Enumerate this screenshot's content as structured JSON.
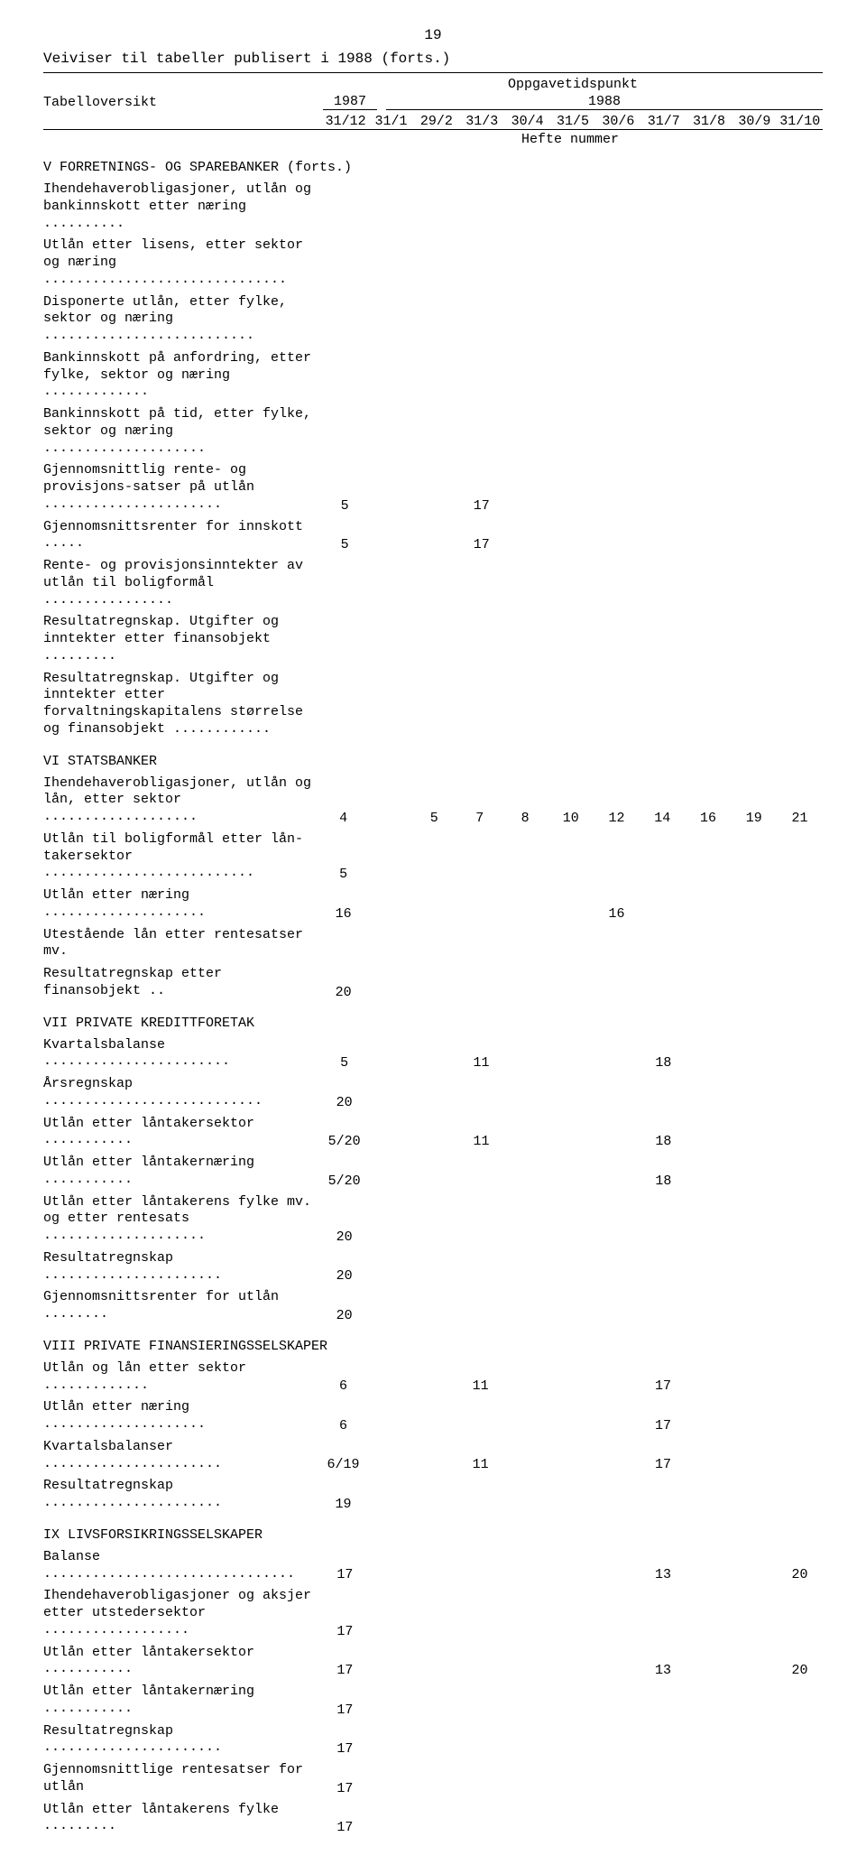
{
  "page_number": "19",
  "doc_title": "Veiviser til tabeller publisert i 1988 (forts.)",
  "header": {
    "left_label": "Tabelloversikt",
    "oppgave": "Oppgavetidspunkt",
    "year_1987": "1987",
    "year_1988": "1988",
    "col_1987": "31/12",
    "cols_1988": [
      "31/1",
      "29/2",
      "31/3",
      "30/4",
      "31/5",
      "30/6",
      "31/7",
      "31/8",
      "30/9",
      "31/10"
    ],
    "hefte": "Hefte nummer"
  },
  "sections": [
    {
      "title": "V  FORRETNINGS- OG SPAREBANKER (forts.)",
      "rows": [
        {
          "label": "Ihendehaverobligasjoner, utlån og bankinnskott etter næring ..........",
          "v": [
            "",
            "",
            "",
            "",
            "",
            "",
            "",
            "",
            "",
            "",
            ""
          ]
        },
        {
          "label": "Utlån etter lisens, etter sektor og næring ..............................",
          "v": [
            "",
            "",
            "",
            "",
            "",
            "",
            "",
            "",
            "",
            "",
            ""
          ]
        },
        {
          "label": "Disponerte utlån, etter fylke, sektor og næring ..........................",
          "v": [
            "",
            "",
            "",
            "",
            "",
            "",
            "",
            "",
            "",
            "",
            ""
          ]
        },
        {
          "label": "Bankinnskott på anfordring, etter fylke, sektor og næring .............",
          "v": [
            "",
            "",
            "",
            "",
            "",
            "",
            "",
            "",
            "",
            "",
            ""
          ]
        },
        {
          "label": "Bankinnskott på tid, etter fylke, sektor og næring ....................",
          "v": [
            "",
            "",
            "",
            "",
            "",
            "",
            "",
            "",
            "",
            "",
            ""
          ]
        },
        {
          "label": "Gjennomsnittlig rente- og provisjons-satser på utlån ......................",
          "v": [
            "5",
            "",
            "",
            "17",
            "",
            "",
            "",
            "",
            "",
            "",
            ""
          ]
        },
        {
          "label": "Gjennomsnittsrenter for innskott .....",
          "v": [
            "5",
            "",
            "",
            "17",
            "",
            "",
            "",
            "",
            "",
            "",
            ""
          ]
        },
        {
          "label": "Rente- og provisjonsinntekter av utlån til boligformål ................",
          "v": [
            "",
            "",
            "",
            "",
            "",
            "",
            "",
            "",
            "",
            "",
            ""
          ]
        },
        {
          "label": "Resultatregnskap. Utgifter og inntekter etter finansobjekt .........",
          "v": [
            "",
            "",
            "",
            "",
            "",
            "",
            "",
            "",
            "",
            "",
            ""
          ]
        },
        {
          "label": "Resultatregnskap. Utgifter og inntekter etter forvaltningskapitalens størrelse og finansobjekt ............",
          "v": [
            "",
            "",
            "",
            "",
            "",
            "",
            "",
            "",
            "",
            "",
            ""
          ]
        }
      ]
    },
    {
      "title": "VI  STATSBANKER",
      "rows": [
        {
          "label": "Ihendehaverobligasjoner, utlån og lån, etter sektor ...................",
          "v": [
            "4",
            "",
            "5",
            "7",
            "8",
            "10",
            "12",
            "14",
            "16",
            "19",
            "21"
          ]
        },
        {
          "label": "Utlån til boligformål etter lån-takersektor ..........................",
          "v": [
            "5",
            "",
            "",
            "",
            "",
            "",
            "",
            "",
            "",
            "",
            ""
          ]
        },
        {
          "label": "Utlån etter næring ....................",
          "v": [
            "16",
            "",
            "",
            "",
            "",
            "",
            "16",
            "",
            "",
            "",
            ""
          ]
        },
        {
          "label": "Utestående lån etter rentesatser mv.",
          "v": [
            "",
            "",
            "",
            "",
            "",
            "",
            "",
            "",
            "",
            "",
            ""
          ]
        },
        {
          "label": "Resultatregnskap etter finansobjekt ..",
          "v": [
            "20",
            "",
            "",
            "",
            "",
            "",
            "",
            "",
            "",
            "",
            ""
          ]
        }
      ]
    },
    {
      "title": "VII  PRIVATE KREDITTFORETAK",
      "rows": [
        {
          "label": "Kvartalsbalanse .......................",
          "v": [
            "5",
            "",
            "",
            "11",
            "",
            "",
            "",
            "18",
            "",
            "",
            ""
          ]
        },
        {
          "label": "Årsregnskap ...........................",
          "v": [
            "20",
            "",
            "",
            "",
            "",
            "",
            "",
            "",
            "",
            "",
            ""
          ]
        },
        {
          "label": "Utlån etter låntakersektor ...........",
          "v": [
            "5/20",
            "",
            "",
            "11",
            "",
            "",
            "",
            "18",
            "",
            "",
            ""
          ]
        },
        {
          "label": "Utlån etter låntakernæring ...........",
          "v": [
            "5/20",
            "",
            "",
            "",
            "",
            "",
            "",
            "18",
            "",
            "",
            ""
          ]
        },
        {
          "label": "Utlån etter låntakerens fylke mv. og etter rentesats ....................",
          "v": [
            "20",
            "",
            "",
            "",
            "",
            "",
            "",
            "",
            "",
            "",
            ""
          ]
        },
        {
          "label": "Resultatregnskap ......................",
          "v": [
            "20",
            "",
            "",
            "",
            "",
            "",
            "",
            "",
            "",
            "",
            ""
          ]
        },
        {
          "label": "Gjennomsnittsrenter for utlån ........",
          "v": [
            "20",
            "",
            "",
            "",
            "",
            "",
            "",
            "",
            "",
            "",
            ""
          ]
        }
      ]
    },
    {
      "title": "VIII  PRIVATE FINANSIERINGSSELSKAPER",
      "rows": [
        {
          "label": "Utlån og lån etter sektor .............",
          "v": [
            "6",
            "",
            "",
            "11",
            "",
            "",
            "",
            "17",
            "",
            "",
            ""
          ]
        },
        {
          "label": "Utlån etter næring ....................",
          "v": [
            "6",
            "",
            "",
            "",
            "",
            "",
            "",
            "17",
            "",
            "",
            ""
          ]
        },
        {
          "label": "Kvartalsbalanser ......................",
          "v": [
            "6/19",
            "",
            "",
            "11",
            "",
            "",
            "",
            "17",
            "",
            "",
            ""
          ]
        },
        {
          "label": "Resultatregnskap ......................",
          "v": [
            "19",
            "",
            "",
            "",
            "",
            "",
            "",
            "",
            "",
            "",
            ""
          ]
        }
      ]
    },
    {
      "title": "IX  LIVSFORSIKRINGSSELSKAPER",
      "rows": [
        {
          "label": "Balanse ...............................",
          "v": [
            "17",
            "",
            "",
            "",
            "",
            "",
            "",
            "13",
            "",
            "",
            "20"
          ]
        },
        {
          "label": "Ihendehaverobligasjoner og aksjer etter utstedersektor ..................",
          "v": [
            "17",
            "",
            "",
            "",
            "",
            "",
            "",
            "",
            "",
            "",
            ""
          ]
        },
        {
          "label": "Utlån etter låntakersektor ...........",
          "v": [
            "17",
            "",
            "",
            "",
            "",
            "",
            "",
            "13",
            "",
            "",
            "20"
          ]
        },
        {
          "label": "Utlån etter låntakernæring ...........",
          "v": [
            "17",
            "",
            "",
            "",
            "",
            "",
            "",
            "",
            "",
            "",
            ""
          ]
        },
        {
          "label": "Resultatregnskap ......................",
          "v": [
            "17",
            "",
            "",
            "",
            "",
            "",
            "",
            "",
            "",
            "",
            ""
          ]
        },
        {
          "label": "Gjennomsnittlige rentesatser for utlån",
          "v": [
            "17",
            "",
            "",
            "",
            "",
            "",
            "",
            "",
            "",
            "",
            ""
          ]
        },
        {
          "label": "Utlån etter låntakerens fylke .........",
          "v": [
            "17",
            "",
            "",
            "",
            "",
            "",
            "",
            "",
            "",
            "",
            ""
          ]
        }
      ]
    }
  ]
}
